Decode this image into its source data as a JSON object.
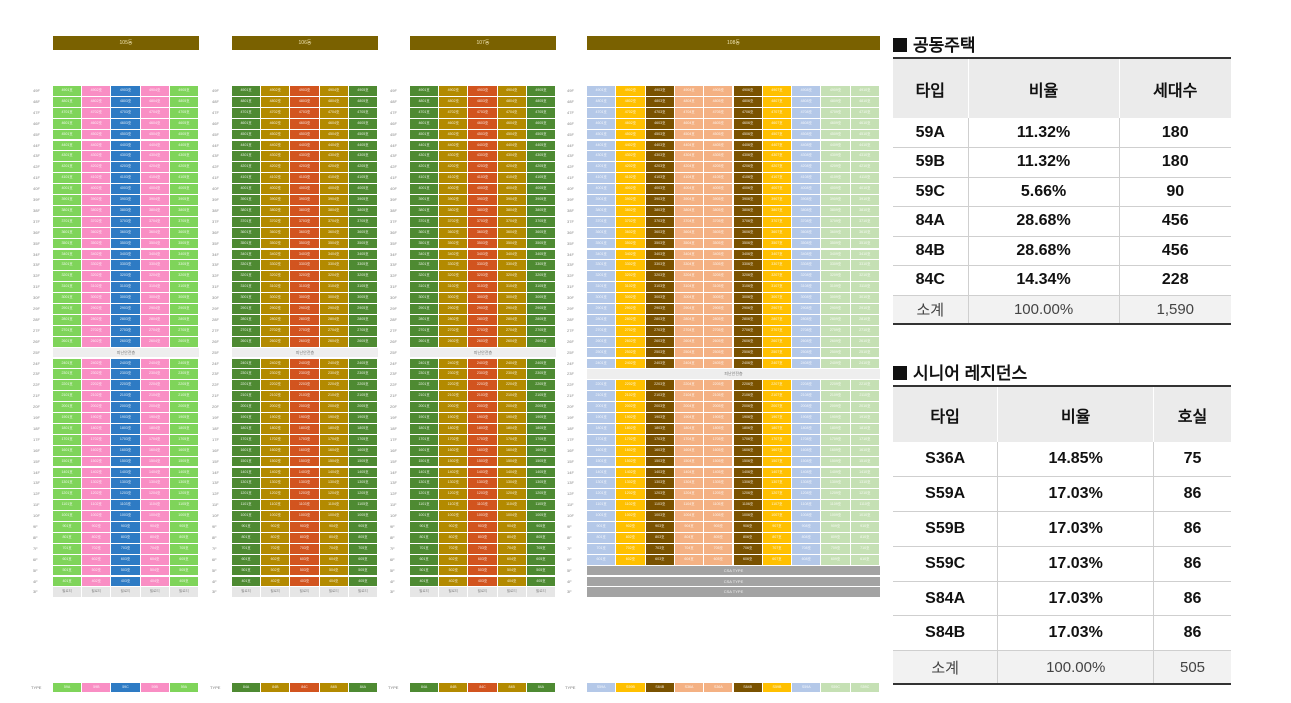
{
  "buildings": [
    {
      "name": "105동",
      "units": 5,
      "colors": [
        "#7fd45a",
        "#f98ec4",
        "#2e7bc4",
        "#f98ec4",
        "#7fd45a"
      ],
      "types": [
        "59A",
        "59B",
        "59C",
        "59B",
        "59A"
      ]
    },
    {
      "name": "106동",
      "units": 5,
      "colors": [
        "#4e8a32",
        "#b38a00",
        "#d2541f",
        "#b38a00",
        "#4e8a32"
      ],
      "types": [
        "84A",
        "84B",
        "84C",
        "84B",
        "84A"
      ]
    },
    {
      "name": "107동",
      "units": 5,
      "colors": [
        "#4e8a32",
        "#b38a00",
        "#d2541f",
        "#b38a00",
        "#4e8a32"
      ],
      "types": [
        "84A",
        "84B",
        "84C",
        "84B",
        "84A"
      ]
    },
    {
      "name": "108동",
      "units": 10,
      "colors": [
        "#b4c8e8",
        "#ffc000",
        "#7a5200",
        "#f4b183",
        "#f4b183",
        "#7a5200",
        "#ffc000",
        "#b4c8e8",
        "#c5e0b4",
        "#c5e0b4"
      ],
      "types": [
        "S59A",
        "S59B",
        "S84B",
        "S36A",
        "S36A",
        "S84B",
        "S59B",
        "S59A",
        "S59C",
        "S59C"
      ]
    }
  ],
  "floor_labels": [
    "49F",
    "48F",
    "47F",
    "46F",
    "45F",
    "44F",
    "43F",
    "42F",
    "41F",
    "40F",
    "39F",
    "38F",
    "37F",
    "36F",
    "35F",
    "34F",
    "33F",
    "32F",
    "31F",
    "30F",
    "29F",
    "28F",
    "27F",
    "26F",
    "25F",
    "24F",
    "23F",
    "22F",
    "21F",
    "20F",
    "19F",
    "18F",
    "17F",
    "16F",
    "15F",
    "14F",
    "13F",
    "12F",
    "11F",
    "10F",
    "9F",
    "8F",
    "7F",
    "6F",
    "5F",
    "4F",
    "3F"
  ],
  "refuge_label": "피난안전층",
  "ground_label": "필로티",
  "common_label": "CSA TYPE",
  "type_row_label": "TYPE",
  "apartment": {
    "heading": "공동주택",
    "columns": [
      "타입",
      "비율",
      "세대수"
    ],
    "rows": [
      [
        "59A",
        "11.32%",
        "180"
      ],
      [
        "59B",
        "11.32%",
        "180"
      ],
      [
        "59C",
        "5.66%",
        "90"
      ],
      [
        "84A",
        "28.68%",
        "456"
      ],
      [
        "84B",
        "28.68%",
        "456"
      ],
      [
        "84C",
        "14.34%",
        "228"
      ]
    ],
    "subtotal": [
      "소계",
      "100.00%",
      "1,590"
    ]
  },
  "senior": {
    "heading": "시니어 레지던스",
    "columns": [
      "타입",
      "비율",
      "호실"
    ],
    "rows": [
      [
        "S36A",
        "14.85%",
        "75"
      ],
      [
        "S59A",
        "17.03%",
        "86"
      ],
      [
        "S59B",
        "17.03%",
        "86"
      ],
      [
        "S59C",
        "17.03%",
        "86"
      ],
      [
        "S84A",
        "17.03%",
        "86"
      ],
      [
        "S84B",
        "17.03%",
        "86"
      ]
    ],
    "subtotal": [
      "소계",
      "100.00%",
      "505"
    ]
  }
}
